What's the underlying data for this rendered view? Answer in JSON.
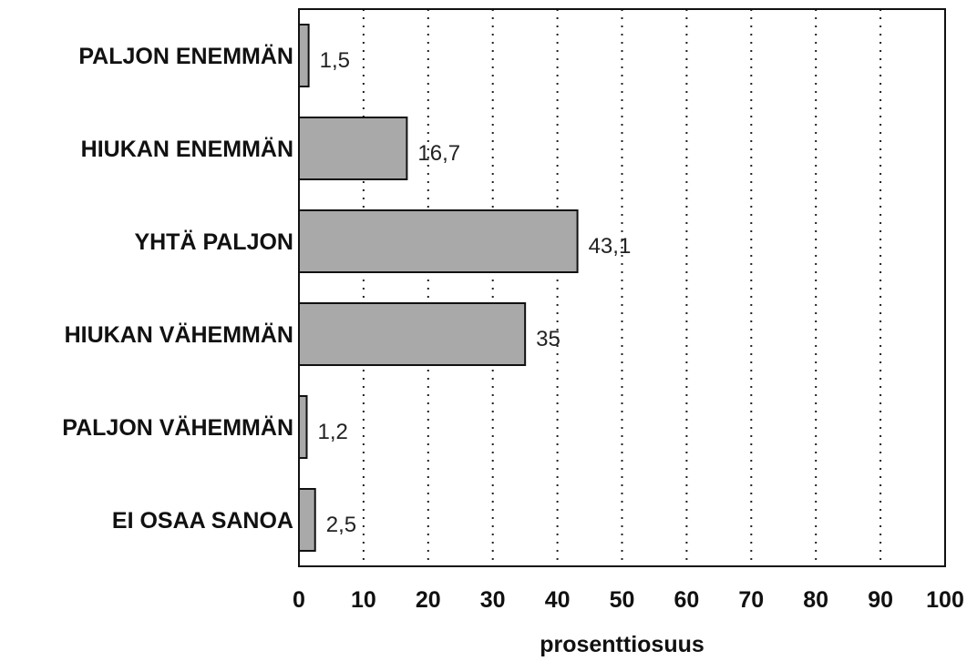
{
  "chart_data": {
    "type": "bar",
    "orientation": "horizontal",
    "categories": [
      "PALJON ENEMMÄN",
      "HIUKAN ENEMMÄN",
      "YHTÄ PALJON",
      "HIUKAN VÄHEMMÄN",
      "PALJON VÄHEMMÄN",
      "EI OSAA SANOA"
    ],
    "values": [
      1.5,
      16.7,
      43.1,
      35,
      1.2,
      2.5
    ],
    "value_labels": [
      "1,5",
      "16,7",
      "43,1",
      "35",
      "1,2",
      "2,5"
    ],
    "title": "",
    "xlabel": "prosenttiosuus",
    "ylabel": "",
    "xlim": [
      0,
      100
    ],
    "xticks": [
      0,
      10,
      20,
      30,
      40,
      50,
      60,
      70,
      80,
      90,
      100
    ],
    "xtick_labels": [
      "0",
      "10",
      "20",
      "30",
      "40",
      "50",
      "60",
      "70",
      "80",
      "90",
      "100"
    ],
    "grid": "vertical-dotted",
    "legend": "none",
    "colors": {
      "bar_fill": "#a9a9a9",
      "bar_stroke": "#111111",
      "grid": "#222222",
      "axis": "#111111"
    }
  }
}
